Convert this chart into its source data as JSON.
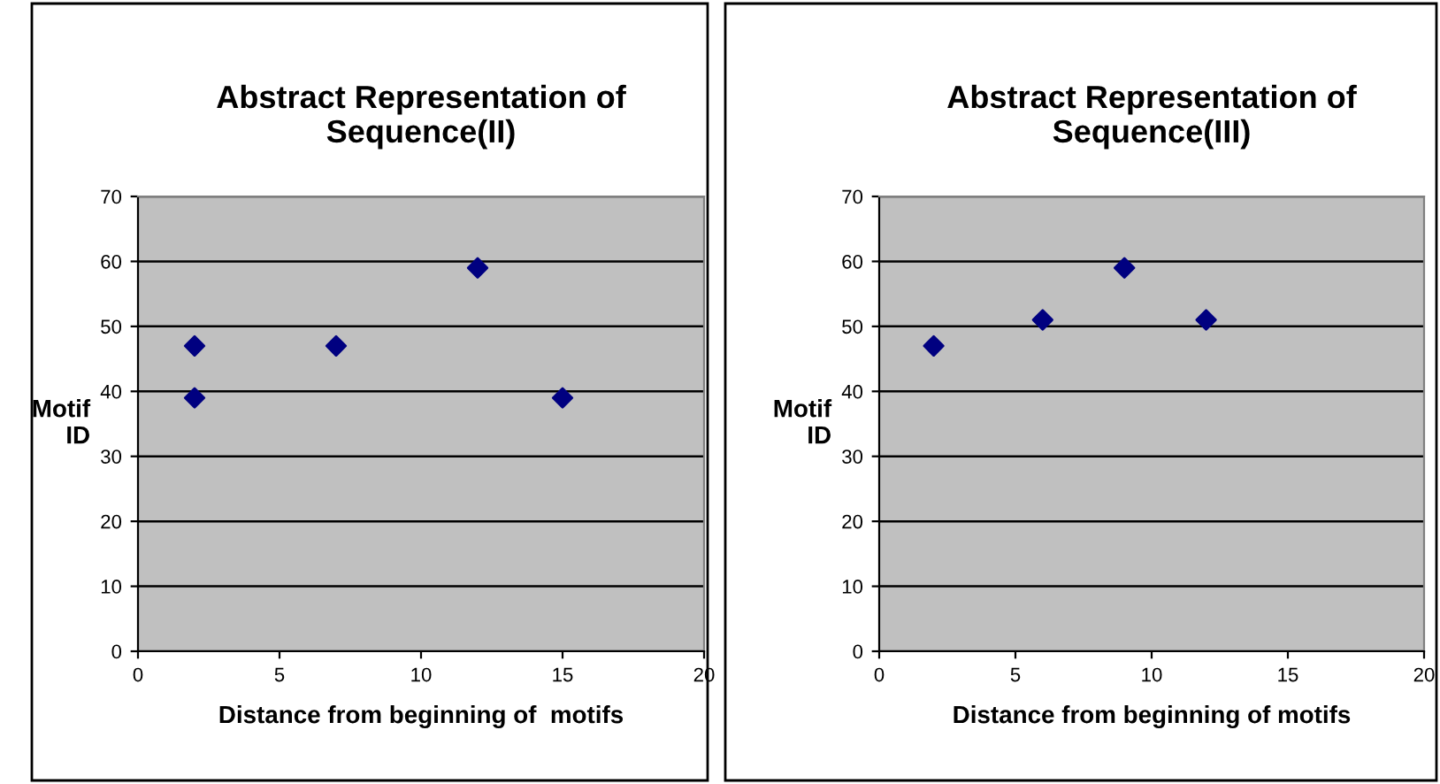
{
  "chart_data": [
    {
      "type": "scatter",
      "title": "Abstract Representation of\nSequence(II)",
      "xlabel": "Distance from beginning of  motifs",
      "ylabel": "Motif\nID",
      "series": [
        {
          "color": "#000080",
          "x": [
            2,
            2,
            7,
            12,
            15
          ],
          "values": [
            47,
            39,
            47,
            59,
            39
          ]
        }
      ],
      "xlim": [
        0,
        20
      ],
      "xticks": [
        0,
        5,
        10,
        15,
        20
      ],
      "ylim": [
        0,
        70
      ],
      "yticks": [
        0,
        10,
        20,
        30,
        40,
        50,
        60,
        70
      ],
      "grid": "y",
      "marker": "diamond",
      "legend": false
    },
    {
      "type": "scatter",
      "title": "Abstract Representation of\nSequence(III)",
      "xlabel": "Distance from beginning of motifs",
      "ylabel": "Motif\nID",
      "series": [
        {
          "color": "#000080",
          "x": [
            2,
            6,
            9,
            12
          ],
          "values": [
            47,
            51,
            59,
            51
          ]
        }
      ],
      "xlim": [
        0,
        20
      ],
      "xticks": [
        0,
        5,
        10,
        15,
        20
      ],
      "ylim": [
        0,
        70
      ],
      "yticks": [
        0,
        10,
        20,
        30,
        40,
        50,
        60,
        70
      ],
      "grid": "y",
      "marker": "diamond",
      "legend": false
    }
  ]
}
